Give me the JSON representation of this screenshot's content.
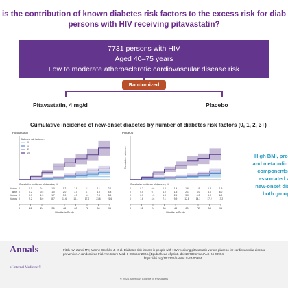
{
  "title_lines": [
    "is the contribution of known diabetes risk factors to the excess risk for diab",
    "persons with HIV receiving pitavastatin?"
  ],
  "banner": [
    "7731 persons with HIV",
    "Aged 40–75 years",
    "Low to moderate atherosclerotic cardiovascular disease risk"
  ],
  "randomized_label": "Randomized",
  "arm_left": "Pitavastatin, 4 mg/d",
  "arm_right": "Placebo",
  "subtitle": "Cumulative incidence of new-onset diabetes by number of diabetes risk factors (0, 1, 2, 3+)",
  "side_text": [
    "High BMI, prediabe",
    "and metabolic syndr",
    "components wer",
    "associated with",
    "new-onset diabete",
    "both groups"
  ],
  "footer": {
    "logo_line1": "Annals",
    "logo_line2": "of Internal Medicine.",
    "logo_reg": "®",
    "citation": "Fitch KV, Zanni MV, Manne-Goehler J, et al. Diabetes risk factors in people with HIV receiving pitavastatin versus placebo for cardiovascular disease prevention.A randomized trial.Ann Intern Med. 8 October 2024. [Epub ahead of print]. doi:10.7326/ANNALS-24-00994",
    "link": "https://doi.org/10.7326/ANNALS-24-00994",
    "copyright": "© 2024 American College of Physicians"
  },
  "chart_data": [
    {
      "type": "line",
      "title": "Pitavastatin",
      "legend_title": "Diabetes risk factors, n",
      "legend_placement": "top-left",
      "xlabel": "Months in Study",
      "ylabel": "",
      "x": [
        0,
        12,
        24,
        36,
        48,
        60,
        72,
        84,
        96
      ],
      "ylim": [
        0,
        0.3
      ],
      "grid": false,
      "series": [
        {
          "name": "0",
          "color": "#a8d4ee",
          "values": [
            0,
            0.001,
            0.004,
            0.01,
            0.012,
            0.018,
            0.021,
            0.021,
            0.021
          ]
        },
        {
          "name": "1",
          "color": "#4d8fd1",
          "values": [
            0,
            0.002,
            0.005,
            0.01,
            0.02,
            0.03,
            0.037,
            0.048,
            0.048
          ]
        },
        {
          "name": "2",
          "color": "#9b8fc6",
          "values": [
            0,
            0.003,
            0.013,
            0.017,
            0.03,
            0.045,
            0.06,
            0.074,
            0.085
          ]
        },
        {
          "name": "≥3",
          "color": "#5b3f8e",
          "values": [
            0,
            0.022,
            0.05,
            0.087,
            0.116,
            0.141,
            0.17,
            0.216,
            0.216
          ]
        }
      ],
      "table_title": "Cumulative incidence of diabetes, %",
      "table_rows": [
        {
          "label": "factors",
          "values": [
            "0",
            "0.1",
            "0.4",
            "1.0",
            "1.2",
            "1.8",
            "2.1",
            "2.1",
            "2.1"
          ]
        },
        {
          "label": "factor",
          "values": [
            "0",
            "0.2",
            "0.5",
            "1.0",
            "2.0",
            "3.0",
            "3.7",
            "4.8",
            "4.8"
          ]
        },
        {
          "label": "factors",
          "values": [
            "0",
            "0.3",
            "1.3",
            "1.7",
            "3.0",
            "4.5",
            "6.0",
            "7.4",
            "8.5"
          ]
        },
        {
          "label": "factors",
          "values": [
            "0",
            "2.2",
            "5.0",
            "8.7",
            "11.6",
            "14.1",
            "17.0",
            "21.6",
            "21.6"
          ]
        }
      ]
    },
    {
      "type": "line",
      "title": "Placebo",
      "xlabel": "Months in Study",
      "ylabel": "Cumulative Incidence",
      "x": [
        0,
        12,
        24,
        36,
        48,
        60,
        72,
        84,
        96
      ],
      "ylim": [
        0,
        0.3
      ],
      "grid": false,
      "series": [
        {
          "name": "0",
          "color": "#a8d4ee",
          "values": [
            0,
            0.002,
            0.006,
            0.012,
            0.014,
            0.016,
            0.019,
            0.019,
            0.019
          ]
        },
        {
          "name": "1",
          "color": "#4d8fd1",
          "values": [
            0,
            0.005,
            0.007,
            0.01,
            0.015,
            0.021,
            0.03,
            0.04,
            0.06
          ]
        },
        {
          "name": "2",
          "color": "#9b8fc6",
          "values": [
            0,
            0.007,
            0.015,
            0.018,
            0.024,
            0.03,
            0.04,
            0.06,
            0.069
          ]
        },
        {
          "name": "≥3",
          "color": "#5b3f8e",
          "values": [
            0,
            0.016,
            0.046,
            0.071,
            0.099,
            0.128,
            0.143,
            0.172,
            0.172
          ]
        }
      ],
      "table_title": "Cumulative incidence of diabetes, %",
      "table_rows": [
        {
          "label": "",
          "values": [
            "0",
            "0.2",
            "0.6",
            "1.2",
            "1.4",
            "1.6",
            "1.9",
            "1.9",
            "1.9"
          ]
        },
        {
          "label": "",
          "values": [
            "0",
            "0.5",
            "0.7",
            "1.0",
            "1.5",
            "2.1",
            "3.0",
            "4.0",
            "6.0"
          ]
        },
        {
          "label": "",
          "values": [
            "0",
            "0.7",
            "1.5",
            "1.8",
            "2.4",
            "3.0",
            "4.0",
            "6.0",
            "6.9"
          ]
        },
        {
          "label": "",
          "values": [
            "0",
            "1.6",
            "4.6",
            "7.1",
            "9.9",
            "12.8",
            "14.3",
            "17.2",
            "17.2"
          ]
        }
      ]
    }
  ]
}
